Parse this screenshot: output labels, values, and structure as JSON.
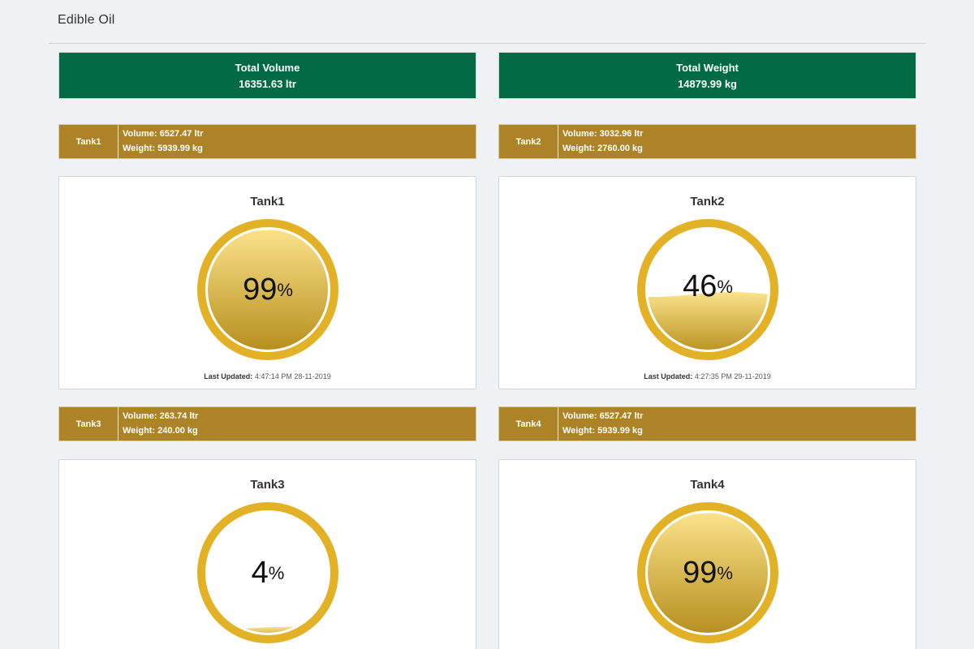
{
  "header": {
    "title": "Edible Oil"
  },
  "summary": {
    "total_volume": {
      "label": "Total Volume",
      "value": "16351.63 ltr"
    },
    "total_weight": {
      "label": "Total Weight",
      "value": "14879.99 kg"
    }
  },
  "colors": {
    "summary_bg": "#006a45",
    "tank_bar_bg": "#ac8327",
    "gauge_ring": "#e3b125",
    "liquid_top": "#fbe28a",
    "liquid_bottom": "#b28a17"
  },
  "tanks": [
    {
      "name": "Tank1",
      "volume": "Volume: 6527.47 ltr",
      "weight": "Weight: 5939.99 kg",
      "card_title": "Tank1",
      "percent": 99,
      "percent_text": "99",
      "unit": "%",
      "updated_label": "Last Updated:",
      "updated_value": "4:47:14 PM 28-11-2019"
    },
    {
      "name": "Tank2",
      "volume": "Volume: 3032.96 ltr",
      "weight": "Weight: 2760.00 kg",
      "card_title": "Tank2",
      "percent": 46,
      "percent_text": "46",
      "unit": "%",
      "updated_label": "Last Updated:",
      "updated_value": "4:27:35 PM 29-11-2019"
    },
    {
      "name": "Tank3",
      "volume": "Volume: 263.74 ltr",
      "weight": "Weight: 240.00 kg",
      "card_title": "Tank3",
      "percent": 4,
      "percent_text": "4",
      "unit": "%",
      "updated_label": "",
      "updated_value": ""
    },
    {
      "name": "Tank4",
      "volume": "Volume: 6527.47 ltr",
      "weight": "Weight: 5939.99 kg",
      "card_title": "Tank4",
      "percent": 99,
      "percent_text": "99",
      "unit": "%",
      "updated_label": "",
      "updated_value": ""
    }
  ]
}
